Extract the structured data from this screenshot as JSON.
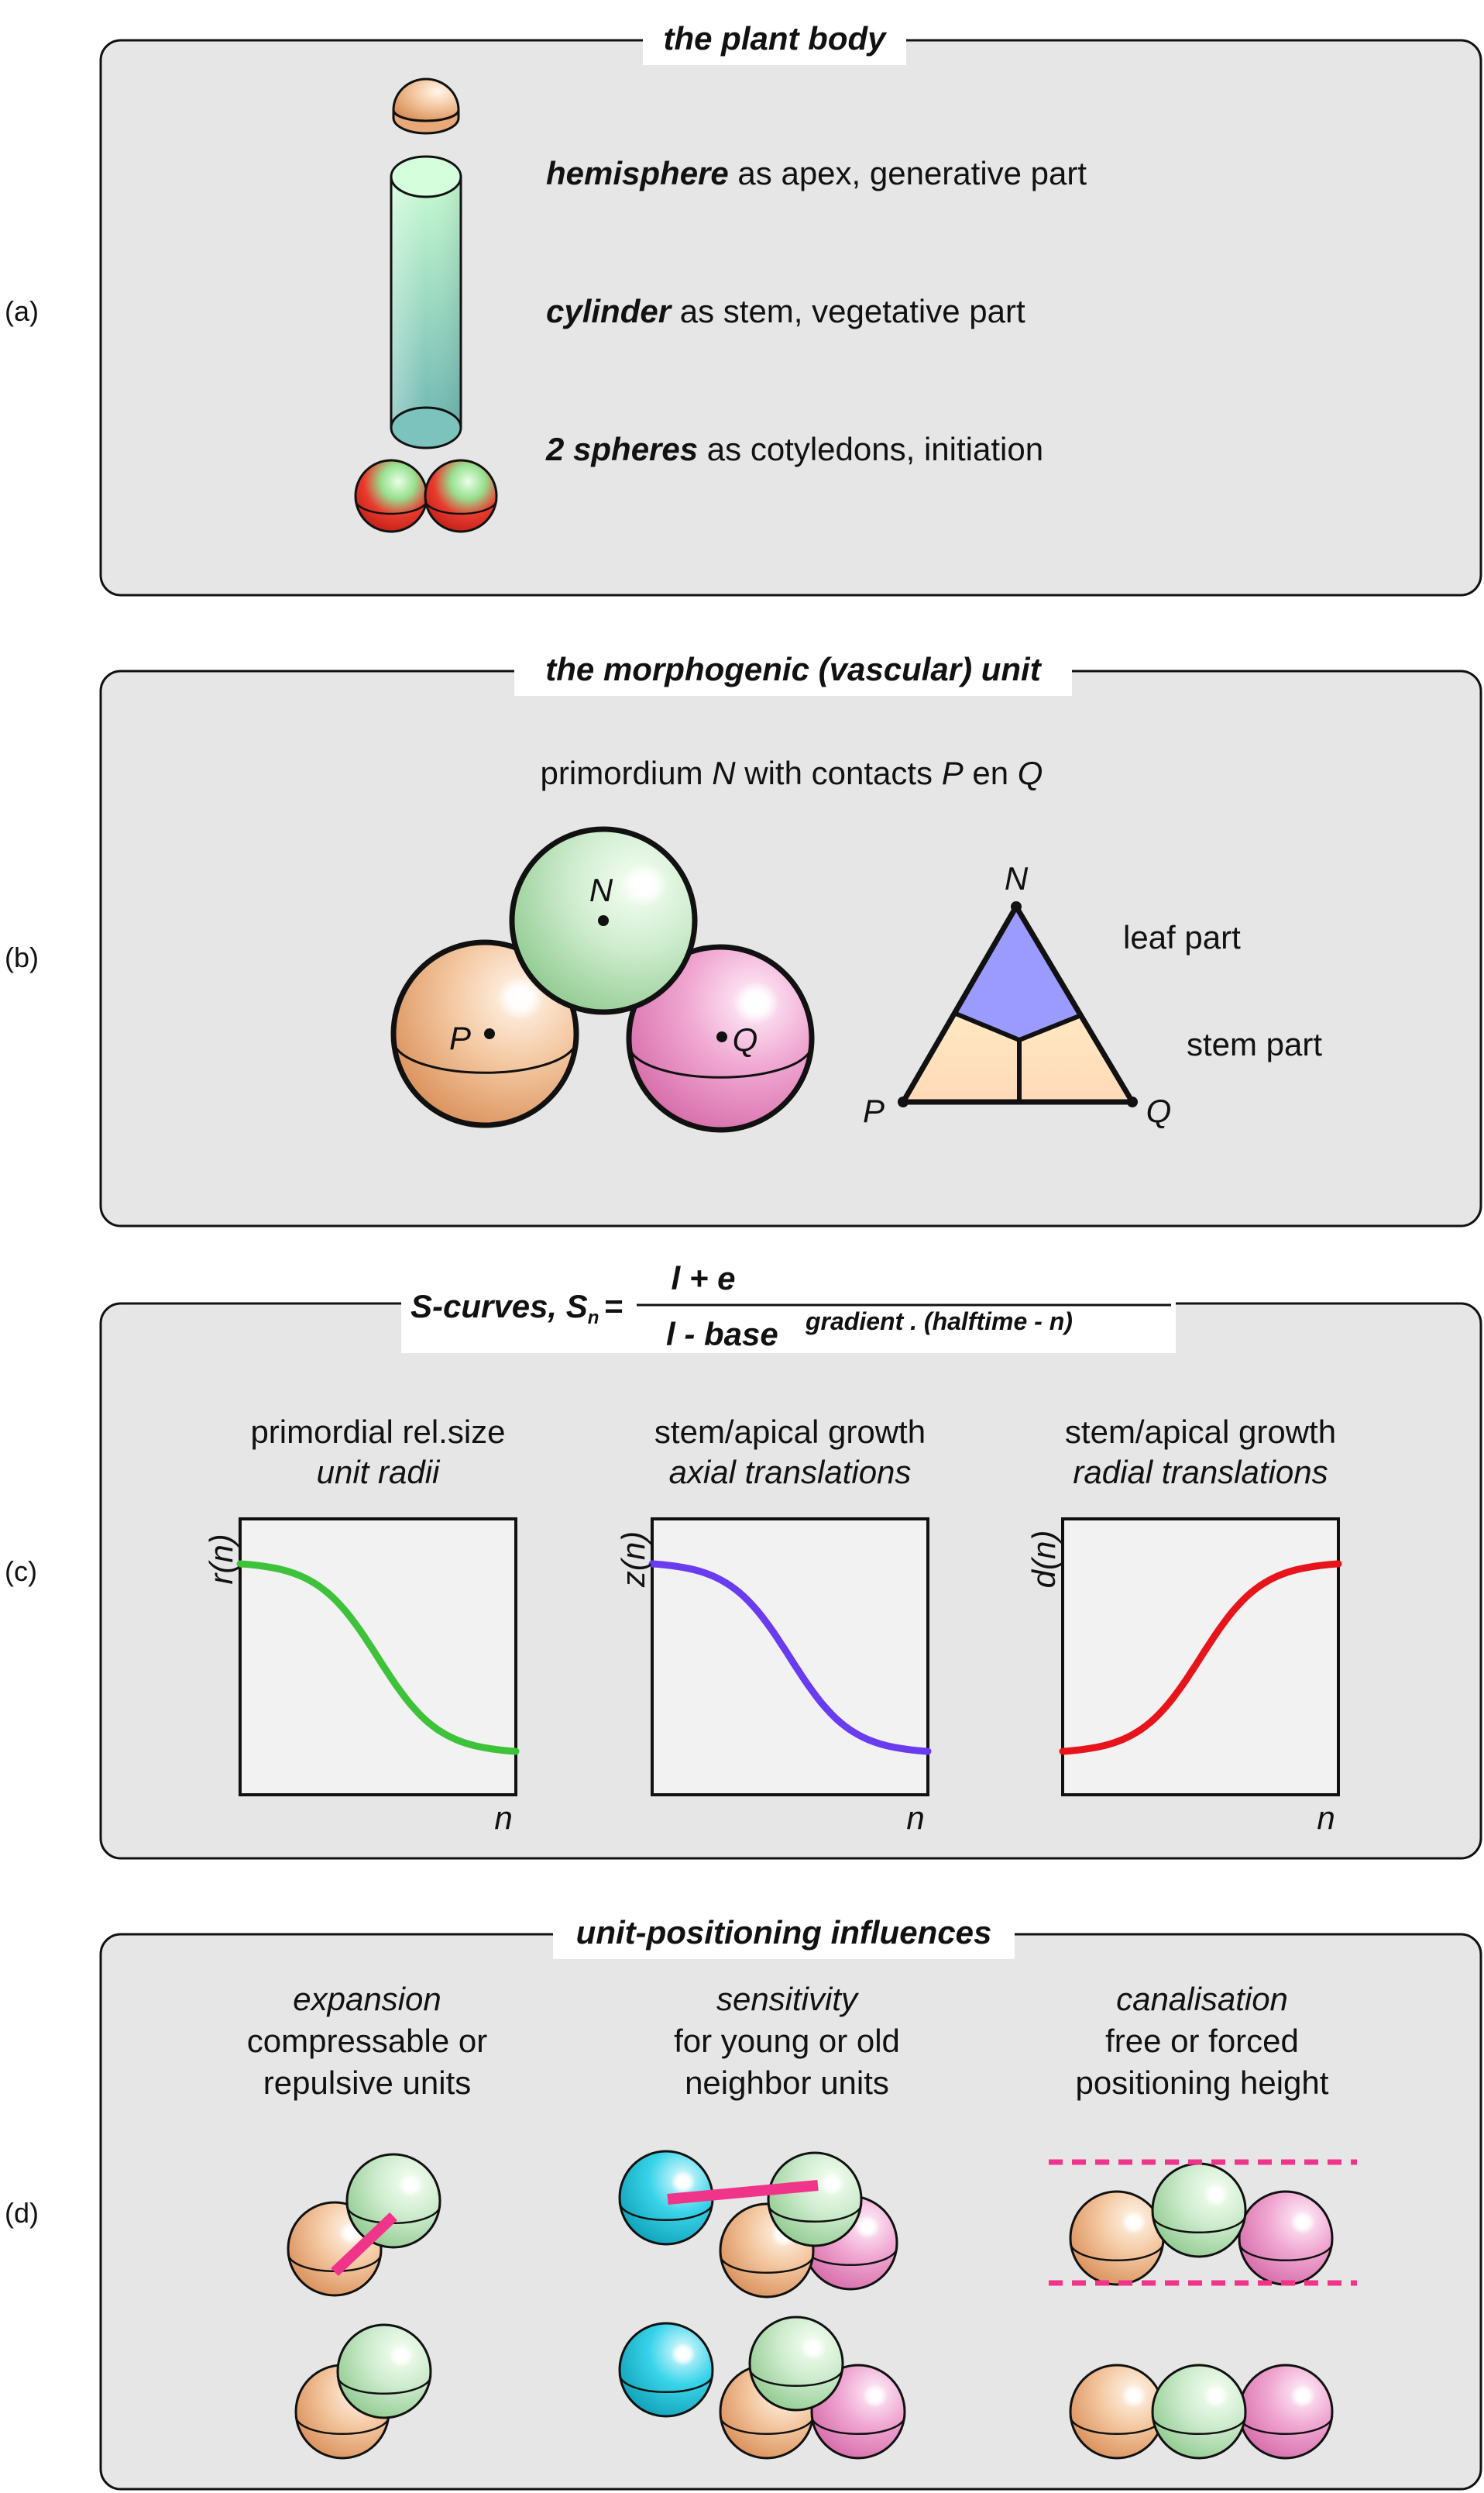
{
  "panels": {
    "a": {
      "label": "(a)",
      "title": "the plant body",
      "lines": [
        {
          "key": "hemisphere",
          "rest": " as apex, generative part"
        },
        {
          "key": "cylinder",
          "rest": " as stem, vegetative part"
        },
        {
          "key": "2 spheres",
          "rest": " as cotyledons, initiation"
        }
      ]
    },
    "b": {
      "label": "(b)",
      "title": "the morphogenic (vascular) unit",
      "caption": {
        "p1": "primordium ",
        "N": "N",
        "p2": " with contacts ",
        "P": "P",
        "p3": " en ",
        "Q": "Q"
      },
      "points": {
        "N": "N",
        "P": "P",
        "Q": "Q"
      },
      "leaf_part": "leaf part",
      "stem_part": "stem part"
    },
    "c": {
      "label": "(c)",
      "formula": {
        "lhs": "S-curves, S",
        "sub": "n",
        "eq": "=",
        "numerator": "l + e",
        "den_l": "l",
        "den_base": " - base",
        "exponent": "gradient . (halftime - n)"
      },
      "plots": [
        {
          "title1": "primordial rel.size",
          "title2": "unit radii",
          "ylabel": "r(n)",
          "xlabel": "n",
          "color": "#3ec23a",
          "direction": "decreasing"
        },
        {
          "title1": "stem/apical growth",
          "title2": "axial translations",
          "ylabel": "z(n)",
          "xlabel": "n",
          "color": "#6a3cf0",
          "direction": "decreasing"
        },
        {
          "title1": "stem/apical growth",
          "title2": "radial translations",
          "ylabel": "d(n)",
          "xlabel": "n",
          "color": "#e8141c",
          "direction": "increasing"
        }
      ]
    },
    "d": {
      "label": "(d)",
      "title": "unit-positioning influences",
      "columns": [
        {
          "head": "expansion",
          "line1": "compressable or",
          "line2": "repulsive units"
        },
        {
          "head": "sensitivity",
          "line1": "for young or old",
          "line2": "neighbor units"
        },
        {
          "head": "canalisation",
          "line1": "free or forced",
          "line2": "positioning height"
        }
      ]
    }
  },
  "colors": {
    "panel_fill": "#e6e6e6",
    "plot_fill": "#f2f2f2",
    "accent_pink": "#f0348a",
    "leaf_purple": "#9b9bff",
    "stem_yellow": "#ffeb9a",
    "sphere_orange": "#f4c9a3",
    "sphere_green": "#cfeccf",
    "sphere_pink": "#f0a8d2",
    "sphere_cyan": "#39d4ea",
    "sphere_red": "#ea3a2e"
  }
}
